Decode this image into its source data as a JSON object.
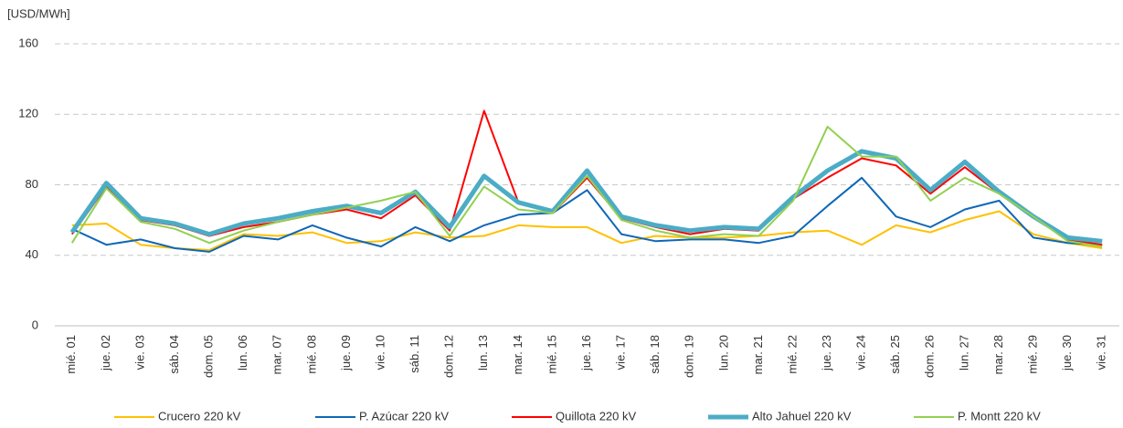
{
  "chart_data": {
    "type": "line",
    "y_label": "[USD/MWh]",
    "categories": [
      "mié. 01",
      "jue. 02",
      "vie. 03",
      "sáb. 04",
      "dom. 05",
      "lun. 06",
      "mar. 07",
      "mié. 08",
      "jue. 09",
      "vie. 10",
      "sáb. 11",
      "dom. 12",
      "lun. 13",
      "mar. 14",
      "mié. 15",
      "jue. 16",
      "vie. 17",
      "sáb. 18",
      "dom. 19",
      "lun. 20",
      "mar. 21",
      "mié. 22",
      "jue. 23",
      "vie. 24",
      "sáb. 25",
      "dom. 26",
      "lun. 27",
      "mar. 28",
      "mié. 29",
      "jue. 30",
      "vie. 31"
    ],
    "series": [
      {
        "name": "Crucero 220 kV",
        "color": "#ffc000",
        "width": 2,
        "values": [
          57,
          58,
          46,
          44,
          43,
          52,
          51,
          53,
          47,
          48,
          53,
          50,
          51,
          57,
          56,
          56,
          47,
          51,
          50,
          50,
          51,
          53,
          54,
          46,
          57,
          53,
          60,
          65,
          52,
          47,
          44
        ]
      },
      {
        "name": "P. Azúcar 220 kV",
        "color": "#0f67b8",
        "width": 2,
        "values": [
          55,
          46,
          49,
          44,
          42,
          51,
          49,
          57,
          50,
          45,
          56,
          48,
          57,
          63,
          64,
          77,
          52,
          48,
          49,
          49,
          47,
          51,
          68,
          84,
          62,
          56,
          66,
          71,
          50,
          47,
          46
        ]
      },
      {
        "name": "Quillota 220 kV",
        "color": "#ff0000",
        "width": 2,
        "values": [
          52,
          79,
          60,
          57,
          51,
          56,
          59,
          63,
          66,
          61,
          74,
          54,
          122,
          70,
          64,
          84,
          61,
          56,
          52,
          55,
          54,
          72,
          84,
          95,
          91,
          75,
          90,
          75,
          62,
          49,
          46
        ]
      },
      {
        "name": "Alto Jahuel 220 kV",
        "color": "#4bacc6",
        "width": 5,
        "values": [
          53,
          81,
          61,
          58,
          52,
          58,
          61,
          65,
          68,
          64,
          76,
          56,
          85,
          70,
          65,
          88,
          62,
          57,
          54,
          56,
          55,
          73,
          88,
          99,
          95,
          77,
          93,
          76,
          62,
          50,
          48
        ]
      },
      {
        "name": "P. Montt 220 kV",
        "color": "#92d050",
        "width": 2,
        "values": [
          47,
          78,
          59,
          55,
          47,
          54,
          59,
          63,
          67,
          71,
          76,
          51,
          79,
          66,
          64,
          85,
          60,
          54,
          50,
          52,
          51,
          71,
          113,
          96,
          96,
          71,
          84,
          75,
          62,
          48,
          45
        ]
      }
    ],
    "ylim": [
      0,
      160
    ],
    "yticks": [
      0,
      40,
      80,
      120,
      160
    ],
    "grid": true,
    "legend": "bottom"
  }
}
